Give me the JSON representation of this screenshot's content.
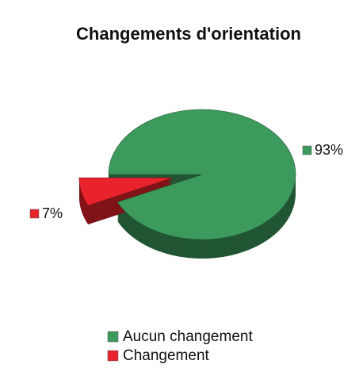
{
  "chart_data": {
    "type": "pie",
    "title": "Changements d'orientation",
    "categories": [
      "Aucun changement",
      "Changement"
    ],
    "values": [
      93,
      7
    ],
    "value_labels": [
      "93%",
      "7%"
    ],
    "colors": [
      "#3c9a5c",
      "#e8232b"
    ],
    "legend": "bottom"
  }
}
